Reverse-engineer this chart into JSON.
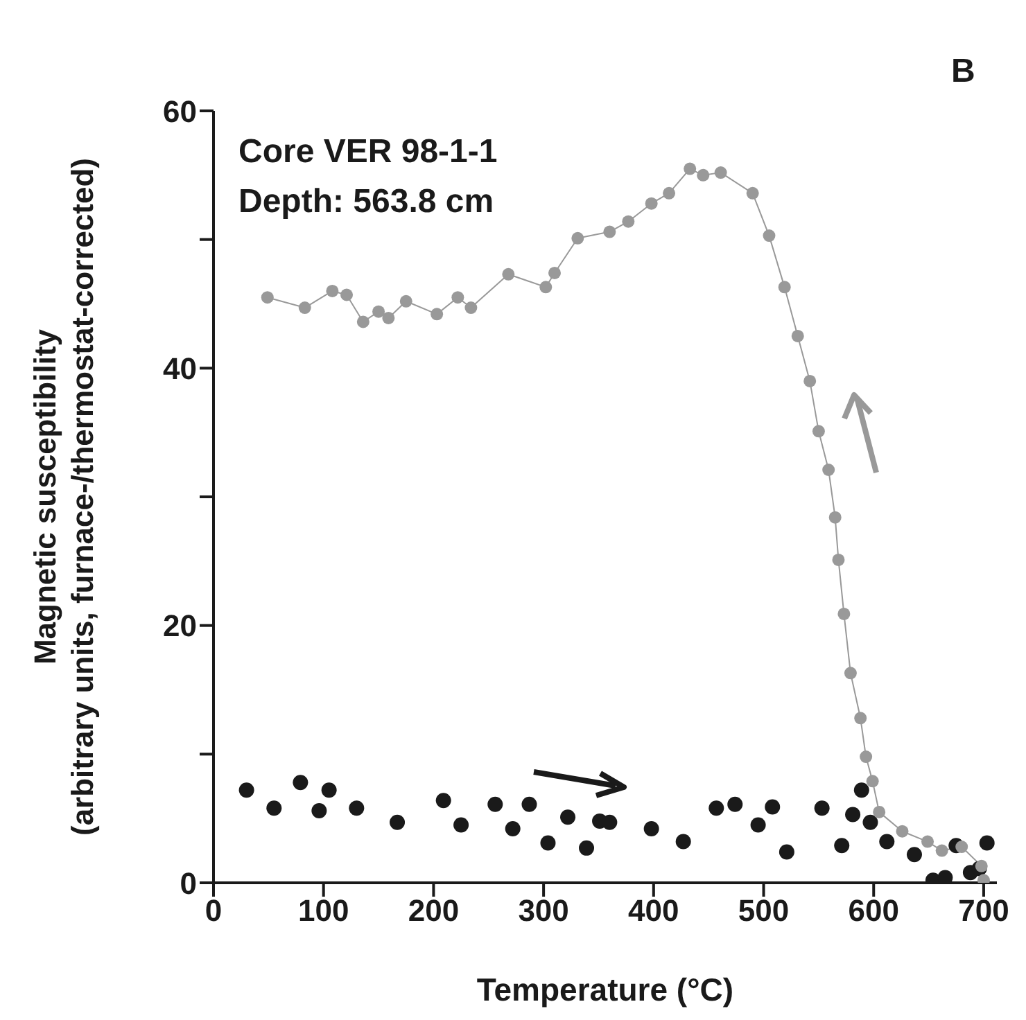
{
  "chart_data": {
    "type": "scatter",
    "xlabel": "Temperature (°C)",
    "ylabel": "Magnetic susceptibility\n(arbitrary units, furnace-/thermostat-corrected)",
    "annotations": [
      "Core VER 98-1-1",
      "Depth: 563.8 cm",
      "B"
    ],
    "xlim": [
      0,
      712
    ],
    "xticks": [
      0,
      100,
      200,
      300,
      400,
      500,
      600,
      700
    ],
    "ylim": [
      0,
      60
    ],
    "yticks": [
      0,
      {
        "value": 10,
        "label": null
      },
      20,
      {
        "value": 30,
        "label": null
      },
      40,
      {
        "value": 50,
        "label": null
      },
      60
    ],
    "grid": false,
    "legend": false,
    "marker": "circle",
    "series": [
      {
        "type": "line",
        "line_style": "solid",
        "color": "#999999",
        "x": [
          49,
          83,
          108,
          121,
          136,
          150,
          159,
          175,
          203,
          222,
          234,
          268,
          302,
          310,
          331,
          360,
          377,
          398,
          414,
          433,
          445,
          461,
          490,
          505,
          519,
          531,
          542,
          550,
          559,
          565,
          568,
          573,
          579,
          588,
          593,
          599,
          605,
          626,
          649,
          662,
          680,
          698,
          700
        ],
        "values": [
          45.5,
          44.7,
          46.0,
          45.7,
          43.6,
          44.4,
          43.9,
          45.2,
          44.2,
          45.5,
          44.7,
          47.3,
          46.3,
          47.4,
          50.1,
          50.6,
          51.4,
          52.8,
          53.6,
          55.5,
          55.0,
          55.2,
          53.6,
          50.3,
          46.3,
          42.5,
          39.0,
          35.1,
          32.1,
          28.4,
          25.1,
          20.9,
          16.3,
          12.8,
          9.8,
          7.9,
          5.5,
          4.0,
          3.2,
          2.5,
          2.8,
          1.3,
          0.2
        ]
      },
      {
        "color": "#1a1a1a",
        "x": [
          30,
          55,
          79,
          96,
          105,
          130,
          167,
          209,
          225,
          256,
          272,
          287,
          304,
          322,
          339,
          351,
          360,
          398,
          427,
          457,
          474,
          495,
          508,
          521,
          553,
          571,
          581,
          589,
          597,
          612,
          637,
          654,
          665,
          675,
          688,
          696,
          703
        ],
        "values": [
          7.2,
          5.8,
          7.8,
          5.6,
          7.2,
          5.8,
          4.7,
          6.4,
          4.5,
          6.1,
          4.2,
          6.1,
          3.1,
          5.1,
          2.7,
          4.8,
          4.7,
          4.2,
          3.2,
          5.8,
          6.1,
          4.5,
          5.9,
          2.4,
          5.8,
          2.9,
          5.3,
          7.2,
          4.7,
          3.2,
          2.2,
          0.2,
          0.4,
          2.9,
          0.8,
          1.1,
          3.1
        ]
      }
    ]
  }
}
